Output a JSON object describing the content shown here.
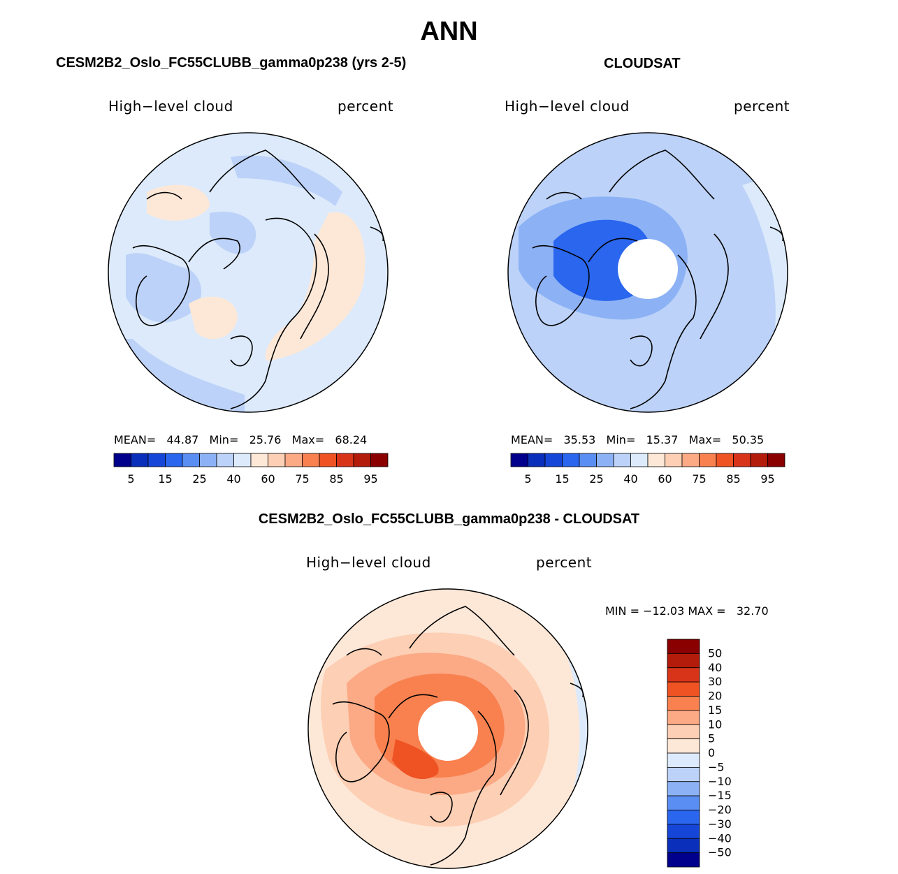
{
  "page": {
    "title": "ANN"
  },
  "panels": [
    {
      "title": "CESM2B2_Oslo_FC55CLUBB_gamma0p238 (yrs 2-5)",
      "variable": "High−level cloud",
      "units": "percent",
      "stats_text": "MEAN=   44.87   Min=   25.76   Max=   68.24"
    },
    {
      "title": "CLOUDSAT",
      "variable": "High−level cloud",
      "units": "percent",
      "stats_text": "MEAN=   35.53   Min=   15.37   Max=   50.35"
    },
    {
      "title": "CESM2B2_Oslo_FC55CLUBB_gamma0p238 - CLOUDSAT",
      "variable": "High−level cloud",
      "units": "percent",
      "stats_text": "MIN = −12.03 MAX =   32.70"
    }
  ],
  "colors": {
    "abs_scale": [
      "#00008c",
      "#0a2fba",
      "#1546d8",
      "#2a66ee",
      "#5a8ef2",
      "#8cb2f5",
      "#bcd2f8",
      "#dceafb",
      "#fde8d8",
      "#fdcfb4",
      "#fca985",
      "#f8814f",
      "#ef5223",
      "#d8341a",
      "#b31b0a",
      "#8a0000"
    ],
    "diff_scale": [
      "#00008c",
      "#0a2fba",
      "#1546d8",
      "#2a66ee",
      "#5a8ef2",
      "#8cb2f5",
      "#bcd2f8",
      "#dceafb",
      "#fde8d8",
      "#fdcfb4",
      "#fca985",
      "#f8814f",
      "#ef5223",
      "#d8341a",
      "#b31b0a",
      "#8a0000"
    ],
    "map_fill_model": "#dceafb",
    "map_fill_obs": "#bcd2f8",
    "map_fill_diff": "#fdcfb4",
    "map_accent_warm": "#fde8d8",
    "map_accent_cool": "#8cb2f5",
    "map_accent_deep": "#2a66ee",
    "map_accent_diff": "#f8814f",
    "map_accent_diff_deep": "#ef5223"
  },
  "chart_data": [
    {
      "type": "heatmap",
      "projection": "north polar stereographic",
      "title": "CESM2B2_Oslo_FC55CLUBB_gamma0p238 (yrs 2-5)",
      "variable": "High−level cloud",
      "units": "percent",
      "stats": {
        "mean": 44.87,
        "min": 25.76,
        "max": 68.24
      },
      "colorbar": {
        "orientation": "horizontal",
        "levels": [
          5,
          15,
          25,
          40,
          60,
          75,
          85,
          95
        ]
      }
    },
    {
      "type": "heatmap",
      "projection": "north polar stereographic",
      "title": "CLOUDSAT",
      "variable": "High−level cloud",
      "units": "percent",
      "stats": {
        "mean": 35.53,
        "min": 15.37,
        "max": 50.35
      },
      "colorbar": {
        "orientation": "horizontal",
        "levels": [
          5,
          15,
          25,
          40,
          60,
          75,
          85,
          95
        ]
      }
    },
    {
      "type": "heatmap",
      "projection": "north polar stereographic",
      "title": "CESM2B2_Oslo_FC55CLUBB_gamma0p238 - CLOUDSAT",
      "variable": "High−level cloud",
      "units": "percent",
      "stats": {
        "min": -12.03,
        "max": 32.7
      },
      "colorbar": {
        "orientation": "vertical",
        "levels": [
          50,
          40,
          30,
          20,
          15,
          10,
          5,
          0,
          -5,
          -10,
          -15,
          -20,
          -30,
          -40,
          -50
        ]
      }
    }
  ]
}
